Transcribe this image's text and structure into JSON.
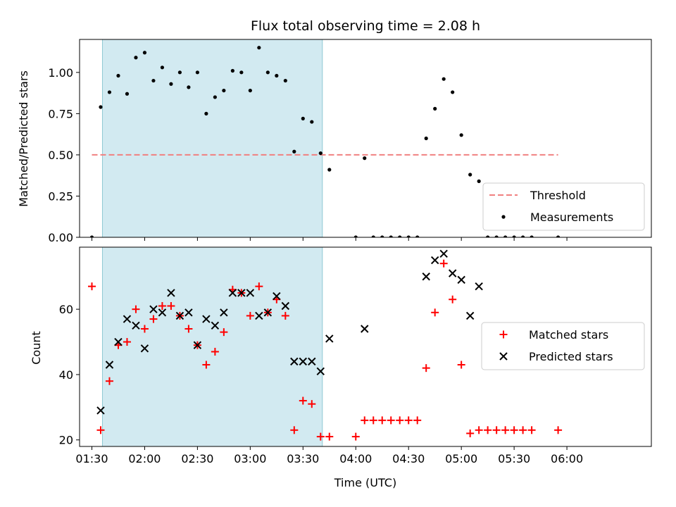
{
  "chart_data": [
    {
      "type": "scatter",
      "title": "Flux total observing time = 2.08 h",
      "ylabel": "Matched/Predicted stars",
      "xlabel": "",
      "ylim": [
        0,
        1.2
      ],
      "yticks": [
        0,
        0.25,
        0.5,
        0.75,
        1.0
      ],
      "ytick_labels": [
        "0.00",
        "0.25",
        "0.50",
        "0.75",
        "1.00"
      ],
      "x_axis": "time (minutes after 00:00 UTC)",
      "xlim": [
        83,
        408
      ],
      "shaded_interval": [
        "01:36",
        "03:41"
      ],
      "shade_color": "#add8e6",
      "threshold": {
        "name": "Threshold",
        "value": 0.5,
        "x_range": [
          "01:30",
          "05:55"
        ],
        "color": "#f08080"
      },
      "series": [
        {
          "name": "Measurements",
          "color": "#000000",
          "x": [
            "01:30",
            "01:35",
            "01:40",
            "01:45",
            "01:50",
            "01:55",
            "02:00",
            "02:05",
            "02:10",
            "02:15",
            "02:20",
            "02:25",
            "02:30",
            "02:35",
            "02:40",
            "02:45",
            "02:50",
            "02:55",
            "03:00",
            "03:05",
            "03:10",
            "03:15",
            "03:20",
            "03:25",
            "03:30",
            "03:35",
            "03:40",
            "03:45",
            "04:00",
            "04:05",
            "04:10",
            "04:15",
            "04:20",
            "04:25",
            "04:30",
            "04:35",
            "04:40",
            "04:45",
            "04:50",
            "04:55",
            "05:00",
            "05:05",
            "05:10",
            "05:15",
            "05:20",
            "05:25",
            "05:30",
            "05:35",
            "05:40",
            "05:55"
          ],
          "y": [
            0.0,
            0.79,
            0.88,
            0.98,
            0.87,
            1.09,
            1.12,
            0.95,
            1.03,
            0.93,
            1.0,
            0.91,
            1.0,
            0.75,
            0.85,
            0.89,
            1.01,
            1.0,
            0.89,
            1.15,
            1.0,
            0.98,
            0.95,
            0.52,
            0.72,
            0.7,
            0.51,
            0.41,
            0.0,
            0.48,
            0.0,
            0.0,
            0.0,
            0.0,
            0.0,
            0.0,
            0.6,
            0.78,
            0.96,
            0.88,
            0.62,
            0.38,
            0.34,
            0.0,
            0.0,
            0.0,
            0.0,
            0.0,
            0.0,
            0.0
          ]
        }
      ],
      "legend": {
        "position": "lower-right",
        "entries": [
          "Threshold",
          "Measurements"
        ]
      }
    },
    {
      "type": "scatter",
      "title": "",
      "ylabel": "Count",
      "xlabel": "Time (UTC)",
      "ylim": [
        18,
        79
      ],
      "yticks": [
        20,
        40,
        60
      ],
      "ytick_labels": [
        "20",
        "40",
        "60"
      ],
      "xlim": [
        83,
        408
      ],
      "xticks": [
        "01:30",
        "02:00",
        "02:30",
        "03:00",
        "03:30",
        "04:00",
        "04:30",
        "05:00",
        "05:30",
        "06:00"
      ],
      "shaded_interval": [
        "01:36",
        "03:41"
      ],
      "shade_color": "#add8e6",
      "series": [
        {
          "name": "Matched stars",
          "marker": "plus",
          "color": "#ff0000",
          "x": [
            "01:30",
            "01:35",
            "01:40",
            "01:45",
            "01:50",
            "01:55",
            "02:00",
            "02:05",
            "02:10",
            "02:15",
            "02:20",
            "02:25",
            "02:30",
            "02:35",
            "02:40",
            "02:45",
            "02:50",
            "02:55",
            "03:00",
            "03:05",
            "03:10",
            "03:15",
            "03:20",
            "03:25",
            "03:30",
            "03:35",
            "03:40",
            "03:45",
            "04:00",
            "04:05",
            "04:10",
            "04:15",
            "04:20",
            "04:25",
            "04:30",
            "04:35",
            "04:40",
            "04:45",
            "04:50",
            "04:55",
            "05:00",
            "05:05",
            "05:10",
            "05:15",
            "05:20",
            "05:25",
            "05:30",
            "05:35",
            "05:40",
            "05:55"
          ],
          "y": [
            67,
            23,
            38,
            49,
            50,
            60,
            54,
            57,
            61,
            61,
            58,
            54,
            49,
            43,
            47,
            53,
            66,
            65,
            58,
            67,
            59,
            63,
            58,
            23,
            32,
            31,
            21,
            21,
            21,
            26,
            26,
            26,
            26,
            26,
            26,
            26,
            42,
            59,
            74,
            63,
            43,
            22,
            23,
            23,
            23,
            23,
            23,
            23,
            23,
            23
          ]
        },
        {
          "name": "Predicted stars",
          "marker": "x",
          "color": "#000000",
          "x": [
            "01:35",
            "01:40",
            "01:45",
            "01:50",
            "01:55",
            "02:00",
            "02:05",
            "02:10",
            "02:15",
            "02:20",
            "02:25",
            "02:30",
            "02:35",
            "02:40",
            "02:45",
            "02:50",
            "02:55",
            "03:00",
            "03:05",
            "03:10",
            "03:15",
            "03:20",
            "03:25",
            "03:30",
            "03:35",
            "03:40",
            "03:45",
            "04:05",
            "04:40",
            "04:45",
            "04:50",
            "04:55",
            "05:00",
            "05:05",
            "05:10"
          ],
          "y": [
            29,
            43,
            50,
            57,
            55,
            48,
            60,
            59,
            65,
            58,
            59,
            49,
            57,
            55,
            59,
            65,
            65,
            65,
            58,
            59,
            64,
            61,
            44,
            44,
            44,
            41,
            51,
            54,
            70,
            75,
            77,
            71,
            69,
            58,
            67
          ]
        }
      ],
      "legend": {
        "position": "center-right",
        "entries": [
          "Matched stars",
          "Predicted stars"
        ]
      }
    }
  ]
}
